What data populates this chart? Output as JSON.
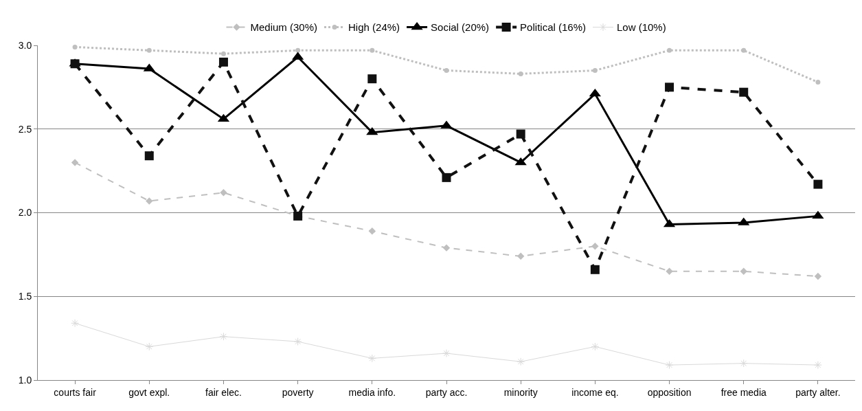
{
  "chart_data": {
    "type": "line",
    "categories": [
      "courts fair",
      "govt expl.",
      "fair elec.",
      "poverty",
      "media info.",
      "party acc.",
      "minority",
      "income eq.",
      "opposition",
      "free media",
      "party alter."
    ],
    "series": [
      {
        "name": "Medium (30%)",
        "color": "#bfbfbf",
        "marker": "diamond",
        "line_style": "dashed",
        "values": [
          2.3,
          2.07,
          2.12,
          1.98,
          1.89,
          1.79,
          1.74,
          1.8,
          1.65,
          1.65,
          1.62
        ]
      },
      {
        "name": "High (24%)",
        "color": "#bfbfbf",
        "marker": "circle",
        "line_style": "dotted",
        "values": [
          2.99,
          2.97,
          2.95,
          2.97,
          2.97,
          2.85,
          2.83,
          2.85,
          2.97,
          2.97,
          2.78
        ]
      },
      {
        "name": "Social (20%)",
        "color": "#000000",
        "marker": "triangle",
        "line_style": "solid",
        "values": [
          2.89,
          2.86,
          2.56,
          2.93,
          2.48,
          2.52,
          2.3,
          2.71,
          1.93,
          1.94,
          1.98
        ]
      },
      {
        "name": "Political (16%)",
        "color": "#111111",
        "marker": "square",
        "line_style": "dashed",
        "values": [
          2.89,
          2.34,
          2.9,
          1.98,
          2.8,
          2.21,
          2.47,
          1.66,
          2.75,
          2.72,
          2.17
        ]
      },
      {
        "name": "Low (10%)",
        "color": "#d9d9d9",
        "marker": "cross",
        "line_style": "solid",
        "values": [
          1.34,
          1.2,
          1.26,
          1.23,
          1.13,
          1.16,
          1.11,
          1.2,
          1.09,
          1.1,
          1.09
        ]
      }
    ],
    "ylim": [
      1.0,
      3.0
    ],
    "yticks": [
      {
        "value": 1,
        "label": "1.0"
      },
      {
        "value": 1.5,
        "label": "1.5"
      },
      {
        "value": 2,
        "label": "2.0"
      },
      {
        "value": 2.5,
        "label": "2.5"
      },
      {
        "value": 3,
        "label": "3.0"
      }
    ],
    "grid": "y",
    "legend": "top"
  }
}
